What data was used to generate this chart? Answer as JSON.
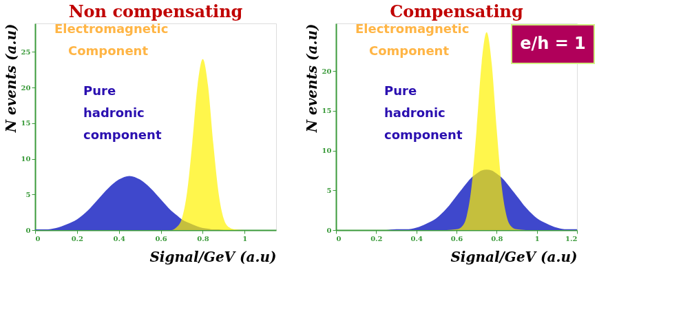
{
  "chart_data": [
    {
      "type": "area",
      "title": "Non compensating",
      "xlabel": "Signal/GeV (a.u)",
      "ylabel": "N events  (a.u)",
      "x": [
        0,
        0.05,
        0.1,
        0.15,
        0.2,
        0.25,
        0.3,
        0.35,
        0.4,
        0.45,
        0.5,
        0.55,
        0.6,
        0.65,
        0.675,
        0.7,
        0.725,
        0.75,
        0.775,
        0.8,
        0.825,
        0.85,
        0.875,
        0.9,
        0.925,
        0.95,
        1.0,
        1.05,
        1.1,
        1.15
      ],
      "series": [
        {
          "color": "#3f48cc",
          "values": [
            0.1,
            0.1,
            0.3,
            0.8,
            1.5,
            2.7,
            4.3,
            5.9,
            7.1,
            7.6,
            7.1,
            5.9,
            4.3,
            2.7,
            2.1,
            1.5,
            1.1,
            0.8,
            0.5,
            0.3,
            0.2,
            0.1,
            0.1,
            0,
            0,
            0,
            0,
            0,
            0,
            0
          ]
        },
        {
          "color": "#fff200",
          "values": [
            0,
            0,
            0,
            0,
            0,
            0,
            0,
            0,
            0,
            0,
            0,
            0,
            0,
            0,
            0.4,
            1.6,
            5.3,
            12.2,
            20.3,
            24,
            20.3,
            12.2,
            5.3,
            1.6,
            0.4,
            0.1,
            0,
            0,
            0,
            0
          ]
        }
      ],
      "xlim": [
        0,
        1.15
      ],
      "xticks": [
        0,
        0.2,
        0.4,
        0.6,
        0.8,
        1
      ],
      "ylim": [
        0,
        29
      ],
      "yticks": [
        0,
        5,
        10,
        15,
        20,
        25
      ],
      "grid": false,
      "legend": false,
      "annotations": [
        "Electromagnetic Component",
        "Pure hadronic component"
      ]
    },
    {
      "type": "area",
      "title": "Compensating",
      "xlabel": "Signal/GeV (a.u)",
      "ylabel": "N events  (a.u)",
      "x": [
        0,
        0.25,
        0.3,
        0.35,
        0.4,
        0.45,
        0.5,
        0.55,
        0.6,
        0.625,
        0.65,
        0.675,
        0.7,
        0.725,
        0.75,
        0.775,
        0.8,
        0.825,
        0.85,
        0.875,
        0.9,
        0.95,
        1.0,
        1.05,
        1.1,
        1.15,
        1.2
      ],
      "series": [
        {
          "color": "#3f48cc",
          "values": [
            0,
            0,
            0.1,
            0.1,
            0.3,
            0.8,
            1.5,
            2.7,
            4.3,
            5.1,
            5.9,
            6.6,
            7.1,
            7.5,
            7.6,
            7.5,
            7.1,
            6.6,
            5.9,
            5.1,
            4.3,
            2.7,
            1.5,
            0.8,
            0.3,
            0.1,
            0.1
          ]
        },
        {
          "color": "#fff200",
          "values": [
            0,
            0,
            0,
            0,
            0,
            0,
            0,
            0,
            0.1,
            0.4,
            1.7,
            5.5,
            12.7,
            21.0,
            24.9,
            21.0,
            12.7,
            5.5,
            1.7,
            0.4,
            0.1,
            0,
            0,
            0,
            0,
            0,
            0
          ]
        }
      ],
      "xlim": [
        0,
        1.2
      ],
      "xticks": [
        0,
        0.2,
        0.4,
        0.6,
        0.8,
        1,
        1.2
      ],
      "ylim": [
        0,
        26
      ],
      "yticks": [
        0,
        5,
        10,
        15,
        20
      ],
      "grid": false,
      "legend": false,
      "annotations": [
        "Electromagnetic Component",
        "Pure hadronic component",
        "e/h = 1"
      ]
    }
  ]
}
